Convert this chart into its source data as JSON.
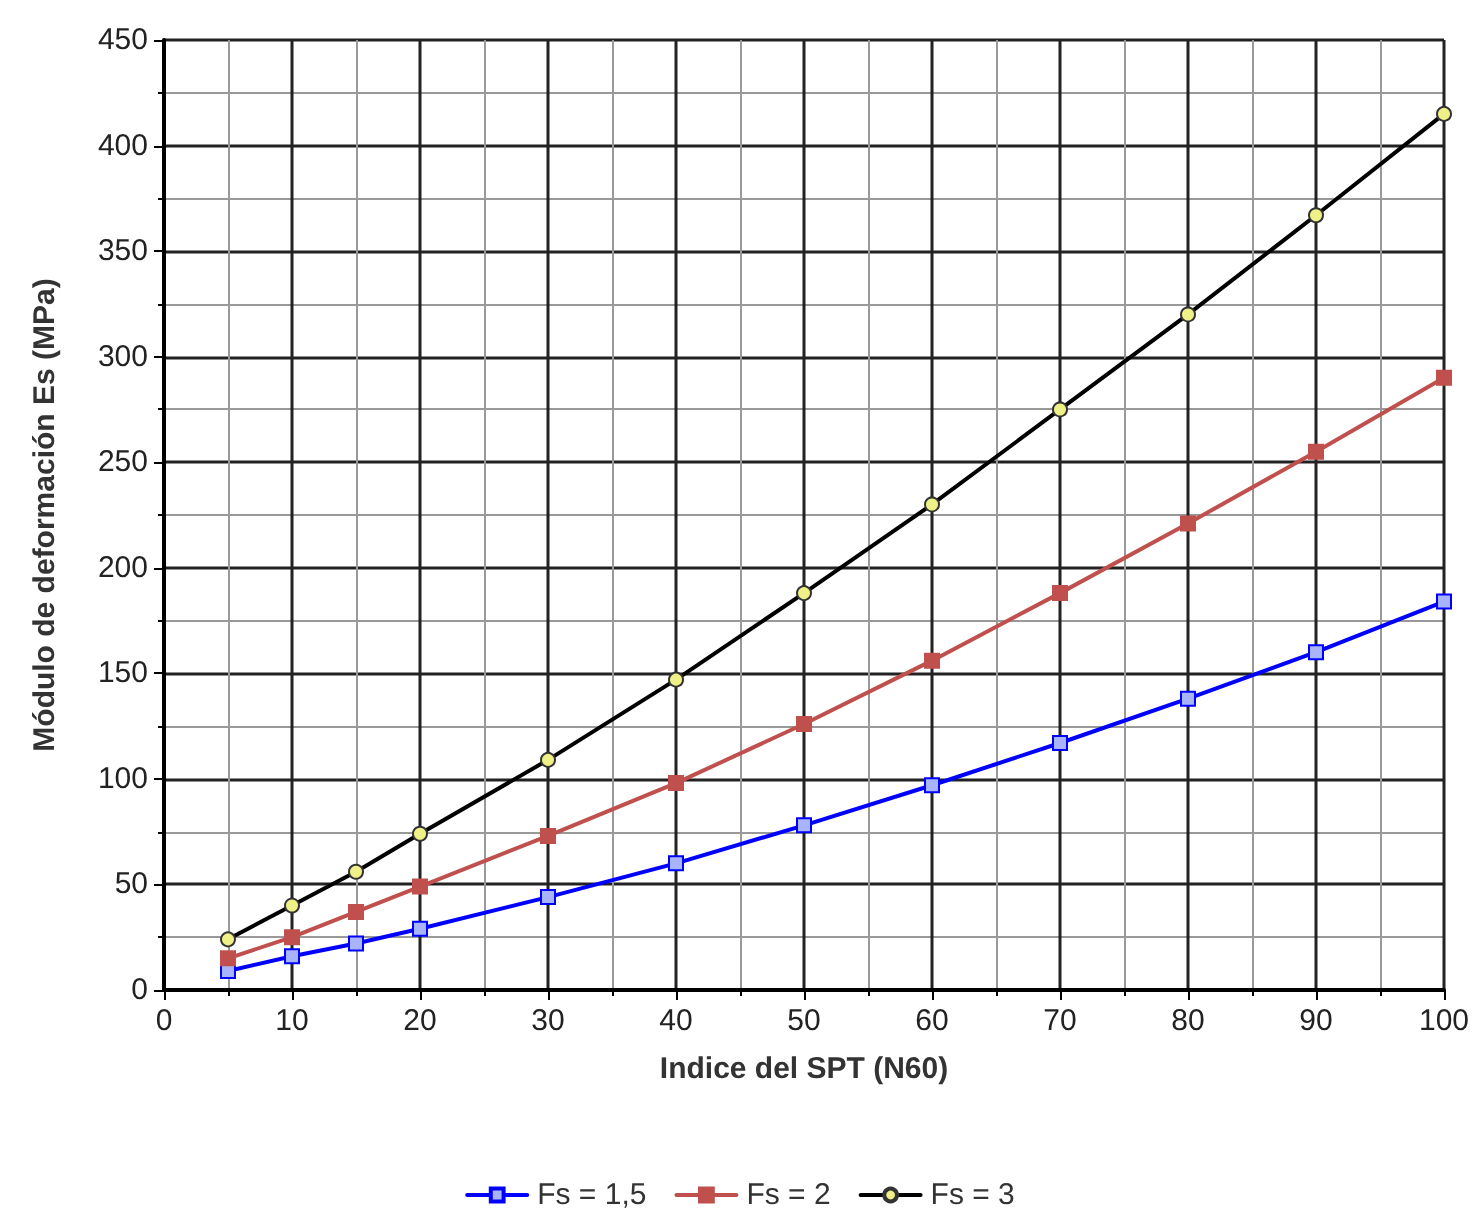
{
  "chart_data": {
    "type": "line",
    "xlabel": "Indice del SPT (N60)",
    "ylabel": "Módulo de deformación Es (MPa)",
    "x": [
      5,
      10,
      15,
      20,
      30,
      40,
      50,
      60,
      70,
      80,
      90,
      100
    ],
    "series": [
      {
        "name": "Fs = 1,5",
        "color": "#0000ff",
        "marker": "square",
        "values": [
          9,
          16,
          22,
          29,
          44,
          60,
          78,
          97,
          117,
          138,
          160,
          184
        ]
      },
      {
        "name": "Fs = 2",
        "color": "#c0504d",
        "marker": "square",
        "values": [
          15,
          25,
          37,
          49,
          73,
          98,
          126,
          156,
          188,
          221,
          255,
          290
        ]
      },
      {
        "name": "Fs = 3",
        "color": "#000000",
        "marker": "circle",
        "values": [
          24,
          40,
          56,
          74,
          109,
          147,
          188,
          230,
          275,
          320,
          367,
          415
        ]
      }
    ],
    "xlim": [
      0,
      100
    ],
    "xticks": [
      0,
      10,
      20,
      30,
      40,
      50,
      60,
      70,
      80,
      90,
      100
    ],
    "ylim": [
      0,
      450
    ],
    "yticks": [
      0,
      50,
      100,
      150,
      200,
      250,
      300,
      350,
      400,
      450
    ],
    "grid": true,
    "legend": "bottom",
    "line_style": "solid"
  }
}
